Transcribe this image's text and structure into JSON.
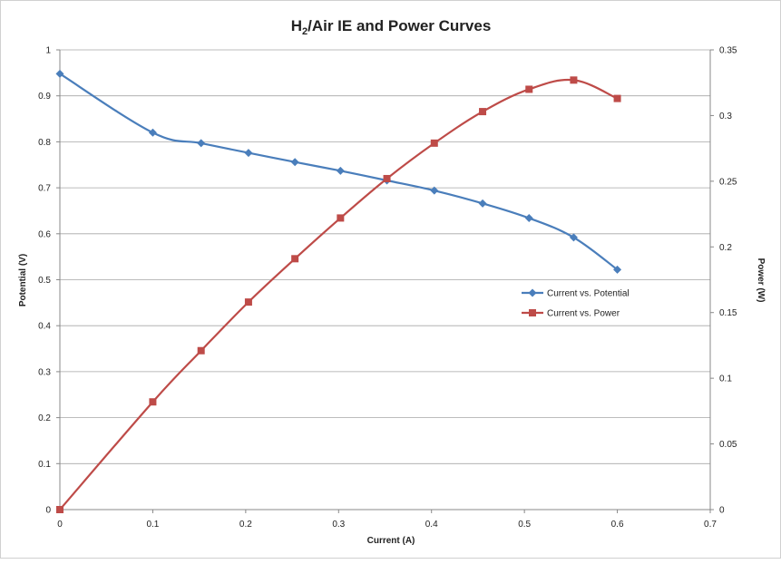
{
  "chart_data": {
    "type": "line",
    "title_main": "H",
    "title_sub": "2",
    "title_rest": "/Air IE and Power Curves",
    "xlabel": "Current (A)",
    "ylabel": "Potential (V)",
    "y2label": "Power (W)",
    "xlim": [
      0,
      0.7
    ],
    "ylim": [
      0,
      1
    ],
    "y2lim": [
      0,
      0.35
    ],
    "x_ticks": [
      "0",
      "0.1",
      "0.2",
      "0.3",
      "0.4",
      "0.5",
      "0.6",
      "0.7"
    ],
    "y_ticks": [
      "0",
      "0.1",
      "0.2",
      "0.3",
      "0.4",
      "0.5",
      "0.6",
      "0.7",
      "0.8",
      "0.9",
      "1"
    ],
    "y2_ticks": [
      "0",
      "0.05",
      "0.1",
      "0.15",
      "0.2",
      "0.25",
      "0.3",
      "0.35"
    ],
    "grid": true,
    "legend_position": "right-middle",
    "series": [
      {
        "name": "Current vs. Potential",
        "axis": "left",
        "color": "#4a7ebb",
        "marker": "diamond",
        "x": [
          0,
          0.1,
          0.152,
          0.203,
          0.253,
          0.302,
          0.352,
          0.403,
          0.455,
          0.505,
          0.553,
          0.6
        ],
        "y": [
          0.948,
          0.82,
          0.797,
          0.776,
          0.756,
          0.737,
          0.716,
          0.694,
          0.666,
          0.634,
          0.592,
          0.522
        ]
      },
      {
        "name": "Current vs. Power",
        "axis": "right",
        "color": "#be4b48",
        "marker": "square",
        "x": [
          0,
          0.1,
          0.152,
          0.203,
          0.253,
          0.302,
          0.352,
          0.403,
          0.455,
          0.505,
          0.553,
          0.6
        ],
        "y": [
          0,
          0.082,
          0.121,
          0.158,
          0.191,
          0.222,
          0.252,
          0.279,
          0.303,
          0.32,
          0.327,
          0.313
        ]
      }
    ]
  }
}
